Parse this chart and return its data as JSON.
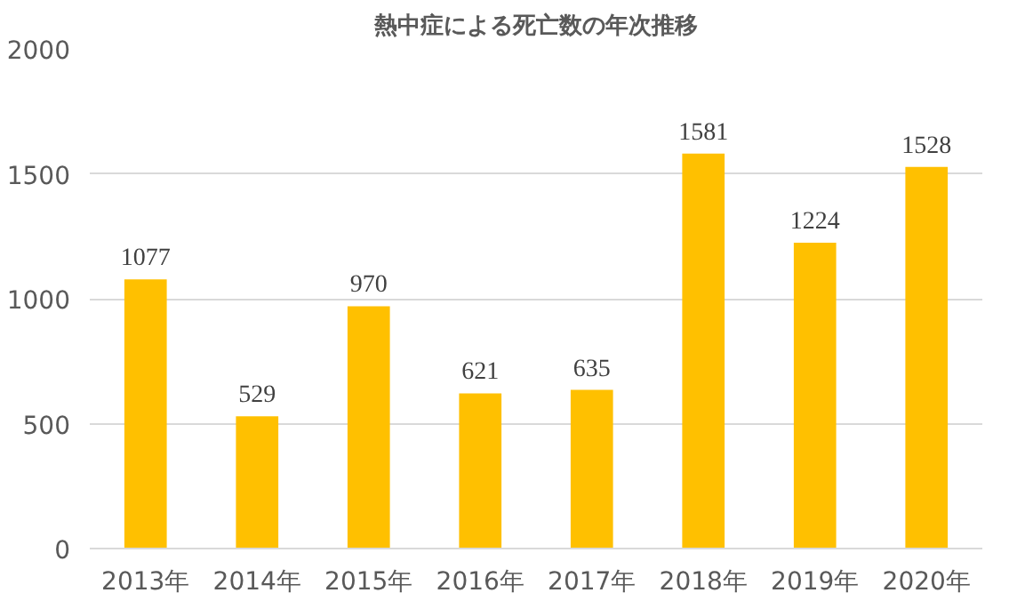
{
  "chart_data": {
    "type": "bar",
    "title": "熱中症による死亡数の年次推移",
    "categories": [
      "2013年",
      "2014年",
      "2015年",
      "2016年",
      "2017年",
      "2018年",
      "2019年",
      "2020年"
    ],
    "values": [
      1077,
      529,
      970,
      621,
      635,
      1581,
      1224,
      1528
    ],
    "color": "#ffc000",
    "ylim": [
      0,
      2000
    ],
    "yticks": [
      0,
      500,
      1000,
      1500,
      2000
    ],
    "grid": "y",
    "data_labels": true
  }
}
